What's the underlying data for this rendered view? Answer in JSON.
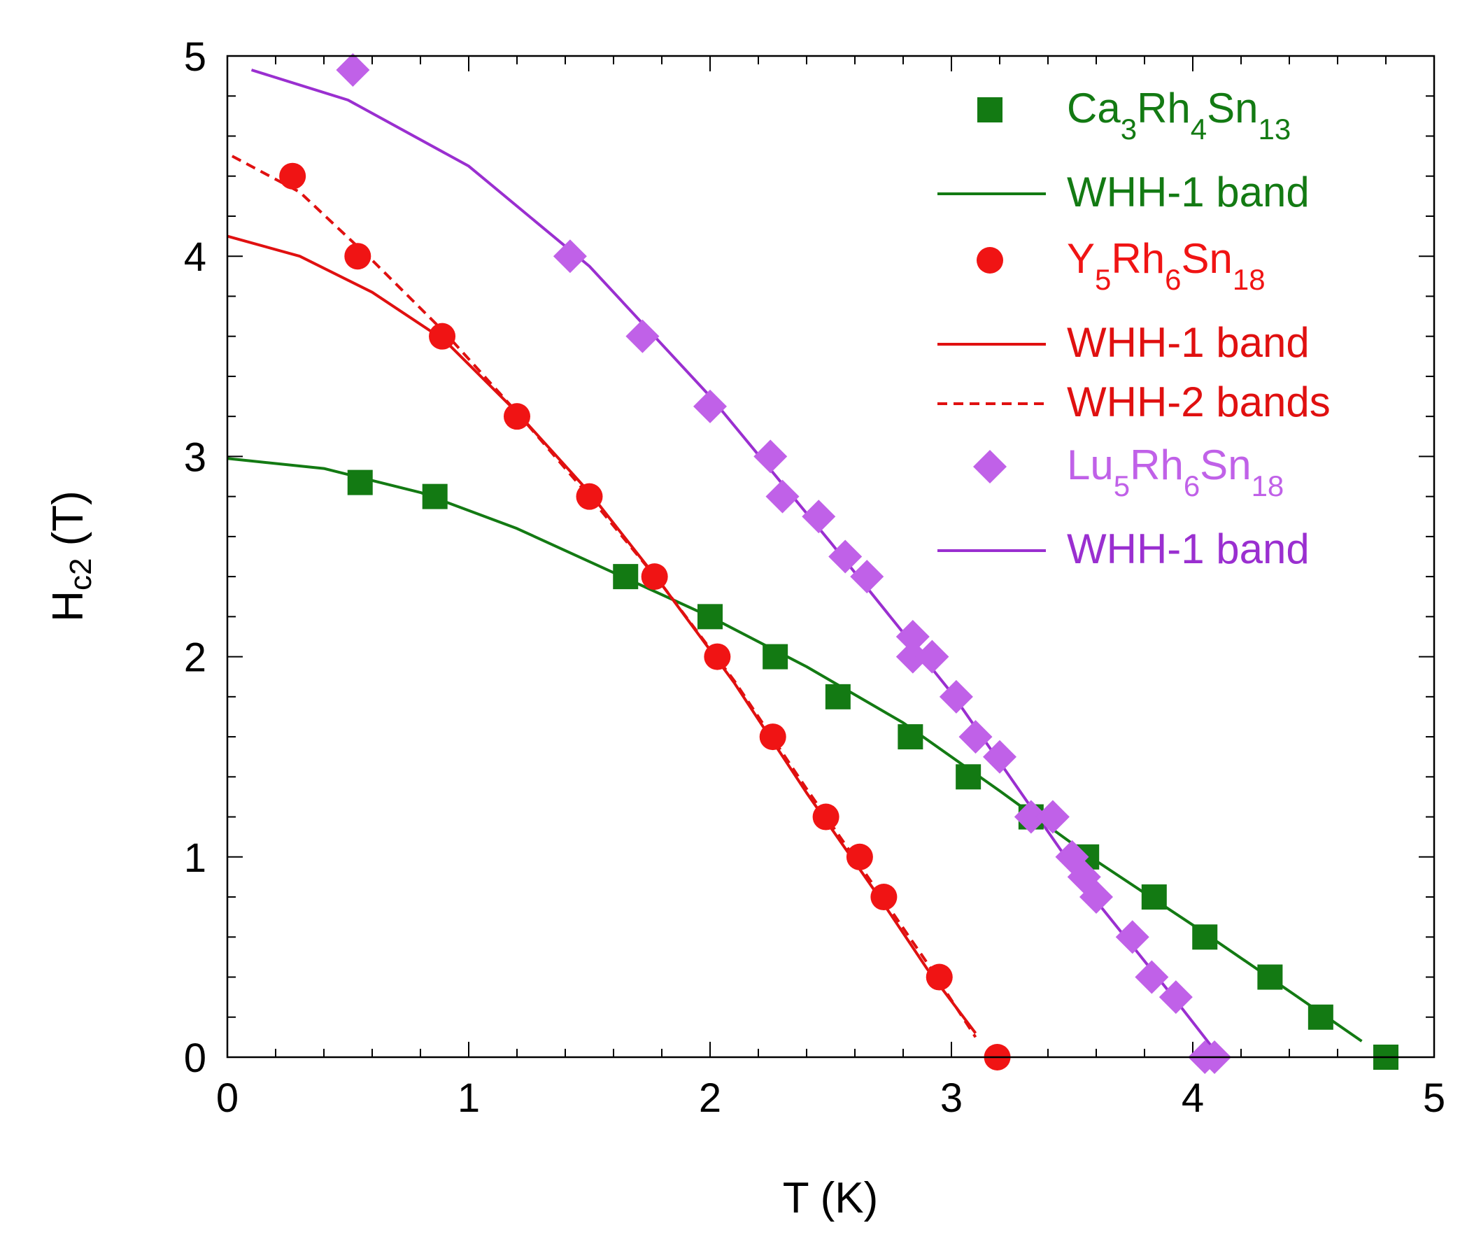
{
  "chart_data": {
    "type": "scatter",
    "title": "",
    "xlabel": "T (K)",
    "ylabel": {
      "main": "H",
      "sub": "c2",
      "unit": " (T)"
    },
    "xlim": [
      0,
      5
    ],
    "ylim": [
      0,
      5
    ],
    "x_ticks": [
      "0",
      "1",
      "2",
      "3",
      "4",
      "5"
    ],
    "y_ticks": [
      "0",
      "1",
      "2",
      "3",
      "4",
      "5"
    ],
    "legend_position": "top-right",
    "legend": [
      {
        "kind": "square",
        "color": "#137a13",
        "parts": [
          [
            "Ca",
            ""
          ],
          [
            "3",
            "sub"
          ],
          [
            "Rh",
            ""
          ],
          [
            "4",
            "sub"
          ],
          [
            "Sn",
            ""
          ],
          [
            "13",
            "sub"
          ]
        ]
      },
      {
        "kind": "solid",
        "color": "#137a13",
        "parts": [
          [
            "WHH-1 band",
            ""
          ]
        ]
      },
      {
        "kind": "circle",
        "color": "#f01414",
        "parts": [
          [
            "Y",
            ""
          ],
          [
            "5",
            "sub"
          ],
          [
            "Rh",
            ""
          ],
          [
            "6",
            "sub"
          ],
          [
            "Sn",
            ""
          ],
          [
            "18",
            "sub"
          ]
        ]
      },
      {
        "kind": "solid",
        "color": "#e01010",
        "parts": [
          [
            "WHH-1 band",
            ""
          ]
        ]
      },
      {
        "kind": "dashed",
        "color": "#e01010",
        "parts": [
          [
            "WHH-2 bands",
            ""
          ]
        ]
      },
      {
        "kind": "diamond",
        "color": "#c061e8",
        "parts": [
          [
            "Lu",
            ""
          ],
          [
            "5",
            "sub"
          ],
          [
            "Rh",
            ""
          ],
          [
            "6",
            "sub"
          ],
          [
            "Sn",
            ""
          ],
          [
            "18",
            "sub"
          ]
        ]
      },
      {
        "kind": "solid",
        "color": "#9a2fd0",
        "parts": [
          [
            "WHH-1 band",
            ""
          ]
        ]
      }
    ],
    "series": [
      {
        "name": "Ca3Rh4Sn13",
        "marker": "square",
        "color": "#137a13",
        "points": [
          [
            0.55,
            2.87
          ],
          [
            0.86,
            2.8
          ],
          [
            1.65,
            2.4
          ],
          [
            2.0,
            2.2
          ],
          [
            2.27,
            2.0
          ],
          [
            2.53,
            1.8
          ],
          [
            2.83,
            1.6
          ],
          [
            3.07,
            1.4
          ],
          [
            3.33,
            1.2
          ],
          [
            3.56,
            1.0
          ],
          [
            3.84,
            0.8
          ],
          [
            4.05,
            0.6
          ],
          [
            4.32,
            0.4
          ],
          [
            4.53,
            0.2
          ],
          [
            4.8,
            0.0
          ]
        ]
      },
      {
        "name": "Y5Rh6Sn18",
        "marker": "circle",
        "color": "#f01414",
        "points": [
          [
            0.27,
            4.4
          ],
          [
            0.54,
            4.0
          ],
          [
            0.89,
            3.6
          ],
          [
            1.2,
            3.2
          ],
          [
            1.5,
            2.8
          ],
          [
            1.77,
            2.4
          ],
          [
            2.03,
            2.0
          ],
          [
            2.26,
            1.6
          ],
          [
            2.48,
            1.2
          ],
          [
            2.62,
            1.0
          ],
          [
            2.72,
            0.8
          ],
          [
            2.95,
            0.4
          ],
          [
            3.19,
            0.0
          ]
        ]
      },
      {
        "name": "Lu5Rh6Sn18",
        "marker": "diamond",
        "color": "#c061e8",
        "points": [
          [
            0.52,
            4.93
          ],
          [
            1.42,
            4.0
          ],
          [
            1.72,
            3.6
          ],
          [
            2.0,
            3.25
          ],
          [
            2.25,
            3.0
          ],
          [
            2.3,
            2.8
          ],
          [
            2.45,
            2.7
          ],
          [
            2.56,
            2.5
          ],
          [
            2.65,
            2.4
          ],
          [
            2.84,
            2.1
          ],
          [
            2.84,
            2.0
          ],
          [
            2.92,
            2.0
          ],
          [
            3.02,
            1.8
          ],
          [
            3.1,
            1.6
          ],
          [
            3.2,
            1.5
          ],
          [
            3.33,
            1.2
          ],
          [
            3.42,
            1.2
          ],
          [
            3.5,
            1.0
          ],
          [
            3.55,
            0.9
          ],
          [
            3.6,
            0.8
          ],
          [
            3.75,
            0.6
          ],
          [
            3.83,
            0.4
          ],
          [
            3.93,
            0.3
          ],
          [
            4.05,
            0.0
          ],
          [
            4.09,
            0.0
          ]
        ]
      }
    ],
    "fits": [
      {
        "name": "WHH-1 band (Ca3Rh4Sn13)",
        "style": "solid",
        "color": "#137a13",
        "points": [
          [
            0.0,
            2.99
          ],
          [
            0.4,
            2.94
          ],
          [
            0.8,
            2.82
          ],
          [
            1.2,
            2.64
          ],
          [
            1.6,
            2.42
          ],
          [
            2.0,
            2.2
          ],
          [
            2.4,
            1.95
          ],
          [
            2.8,
            1.67
          ],
          [
            3.2,
            1.33
          ],
          [
            3.6,
            0.98
          ],
          [
            4.0,
            0.66
          ],
          [
            4.4,
            0.33
          ],
          [
            4.7,
            0.08
          ]
        ]
      },
      {
        "name": "WHH-1 band (Y5Rh6Sn18)",
        "style": "solid",
        "color": "#e01010",
        "points": [
          [
            0.0,
            4.1
          ],
          [
            0.3,
            4.0
          ],
          [
            0.6,
            3.82
          ],
          [
            0.9,
            3.58
          ],
          [
            1.2,
            3.22
          ],
          [
            1.5,
            2.82
          ],
          [
            1.8,
            2.36
          ],
          [
            2.1,
            1.87
          ],
          [
            2.4,
            1.32
          ],
          [
            2.7,
            0.8
          ],
          [
            2.9,
            0.44
          ],
          [
            3.1,
            0.12
          ]
        ]
      },
      {
        "name": "WHH-2 bands (Y5Rh6Sn18)",
        "style": "dashed",
        "color": "#e01010",
        "points": [
          [
            0.02,
            4.5
          ],
          [
            0.3,
            4.32
          ],
          [
            0.6,
            3.98
          ],
          [
            0.9,
            3.62
          ],
          [
            1.2,
            3.22
          ],
          [
            1.5,
            2.8
          ],
          [
            1.8,
            2.36
          ],
          [
            2.1,
            1.88
          ],
          [
            2.4,
            1.34
          ],
          [
            2.7,
            0.82
          ],
          [
            2.9,
            0.47
          ],
          [
            3.1,
            0.1
          ]
        ]
      },
      {
        "name": "WHH-1 band (Lu5Rh6Sn18)",
        "style": "solid",
        "color": "#9a2fd0",
        "points": [
          [
            0.1,
            4.93
          ],
          [
            0.5,
            4.78
          ],
          [
            1.0,
            4.45
          ],
          [
            1.5,
            3.95
          ],
          [
            2.0,
            3.3
          ],
          [
            2.5,
            2.57
          ],
          [
            3.0,
            1.82
          ],
          [
            3.3,
            1.3
          ],
          [
            3.6,
            0.78
          ],
          [
            3.9,
            0.33
          ],
          [
            4.1,
            0.02
          ]
        ]
      }
    ]
  }
}
